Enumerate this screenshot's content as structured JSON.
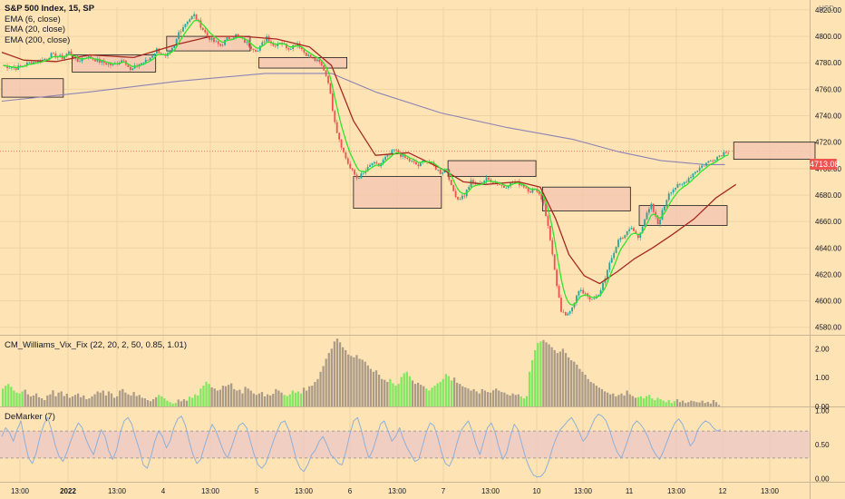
{
  "header": {
    "title": "S&P 500 Index, 15, SP",
    "currency": "USD",
    "indicators": [
      "EMA (6, close)",
      "EMA (20, close)",
      "EMA (200, close)"
    ]
  },
  "last_price": "4713.08",
  "colors": {
    "background": "#fee3b4",
    "up": "#26a69a",
    "down": "#ef5350",
    "ema6": "#2ee52e",
    "ema20": "#a52a1f",
    "ema200": "#8c84b4",
    "zone_fill": "#f4c8b2",
    "vix_high": "#7fe860",
    "vix_low": "#aa9a88",
    "demarker_line": "#8fb0d8",
    "demarker_band": "#eec8c6"
  },
  "vix_panel": {
    "title": "CM_Williams_Vix_Fix (22, 20, 2, 50, 0.85, 1.01)"
  },
  "demarker_panel": {
    "title": "DeMarker (7)"
  },
  "chart_data": [
    {
      "type": "candlestick",
      "title": "S&P 500 Index, 15, SP",
      "x_ticks": [
        "13:00",
        "2022",
        "13:00",
        "4",
        "13:00",
        "5",
        "13:00",
        "6",
        "13:00",
        "7",
        "13:00",
        "10",
        "13:00",
        "11",
        "13:00",
        "12",
        "13:00"
      ],
      "y_ticks": [
        "4820.00",
        "4800.00",
        "4780.00",
        "4760.00",
        "4740.00",
        "4720.00",
        "4700.00",
        "4680.00",
        "4660.00",
        "4640.00",
        "4620.00",
        "4600.00",
        "4580.00"
      ],
      "ylim": [
        4575,
        4822
      ],
      "last_value": 4713.08,
      "close_path": [
        [
          0,
          4778
        ],
        [
          6,
          4776
        ],
        [
          12,
          4780
        ],
        [
          18,
          4782
        ],
        [
          22,
          4786
        ],
        [
          27,
          4784
        ],
        [
          30,
          4788
        ],
        [
          34,
          4781
        ],
        [
          38,
          4785
        ],
        [
          44,
          4781
        ],
        [
          50,
          4778
        ],
        [
          55,
          4783
        ],
        [
          58,
          4774
        ],
        [
          62,
          4779
        ],
        [
          66,
          4782
        ],
        [
          70,
          4790
        ],
        [
          74,
          4784
        ],
        [
          78,
          4792
        ],
        [
          80,
          4803
        ],
        [
          84,
          4812
        ],
        [
          87,
          4816
        ],
        [
          90,
          4808
        ],
        [
          93,
          4800
        ],
        [
          96,
          4796
        ],
        [
          99,
          4793
        ],
        [
          102,
          4798
        ],
        [
          106,
          4801
        ],
        [
          110,
          4796
        ],
        [
          113,
          4792
        ],
        [
          116,
          4789
        ],
        [
          120,
          4800
        ],
        [
          123,
          4793
        ],
        [
          126,
          4796
        ],
        [
          130,
          4791
        ],
        [
          134,
          4795
        ],
        [
          137,
          4788
        ],
        [
          140,
          4784
        ],
        [
          142,
          4782
        ],
        [
          144,
          4780
        ],
        [
          146,
          4775
        ],
        [
          148,
          4766
        ],
        [
          150,
          4745
        ],
        [
          152,
          4728
        ],
        [
          155,
          4712
        ],
        [
          158,
          4700
        ],
        [
          161,
          4693
        ],
        [
          164,
          4696
        ],
        [
          168,
          4704
        ],
        [
          171,
          4702
        ],
        [
          174,
          4708
        ],
        [
          178,
          4714
        ],
        [
          182,
          4709
        ],
        [
          186,
          4705
        ],
        [
          189,
          4702
        ],
        [
          192,
          4707
        ],
        [
          196,
          4702
        ],
        [
          199,
          4697
        ],
        [
          202,
          4700
        ],
        [
          204,
          4686
        ],
        [
          207,
          4677
        ],
        [
          210,
          4680
        ],
        [
          213,
          4690
        ],
        [
          216,
          4688
        ],
        [
          220,
          4692
        ],
        [
          224,
          4690
        ],
        [
          228,
          4686
        ],
        [
          232,
          4690
        ],
        [
          236,
          4688
        ],
        [
          240,
          4683
        ],
        [
          243,
          4684
        ],
        [
          246,
          4674
        ],
        [
          248,
          4656
        ],
        [
          250,
          4636
        ],
        [
          252,
          4610
        ],
        [
          254,
          4592
        ],
        [
          256,
          4588
        ],
        [
          259,
          4596
        ],
        [
          262,
          4607
        ],
        [
          265,
          4606
        ],
        [
          268,
          4600
        ],
        [
          271,
          4604
        ],
        [
          274,
          4618
        ],
        [
          277,
          4632
        ],
        [
          280,
          4646
        ],
        [
          283,
          4650
        ],
        [
          286,
          4655
        ],
        [
          289,
          4648
        ],
        [
          292,
          4662
        ],
        [
          295,
          4672
        ],
        [
          298,
          4658
        ],
        [
          301,
          4672
        ],
        [
          303,
          4682
        ],
        [
          306,
          4686
        ],
        [
          309,
          4688
        ],
        [
          312,
          4693
        ],
        [
          315,
          4698
        ],
        [
          318,
          4702
        ],
        [
          320,
          4704
        ],
        [
          323,
          4707
        ],
        [
          326,
          4710
        ],
        [
          329,
          4713.08
        ]
      ],
      "ema200": [
        [
          0,
          4751
        ],
        [
          40,
          4758
        ],
        [
          80,
          4766
        ],
        [
          120,
          4772
        ],
        [
          150,
          4772
        ],
        [
          170,
          4758
        ],
        [
          200,
          4742
        ],
        [
          230,
          4731
        ],
        [
          260,
          4722
        ],
        [
          280,
          4713
        ],
        [
          300,
          4706
        ],
        [
          320,
          4703
        ],
        [
          329,
          4703
        ]
      ],
      "ema20": [
        [
          0,
          4788
        ],
        [
          10,
          4782
        ],
        [
          25,
          4781
        ],
        [
          40,
          4786
        ],
        [
          60,
          4784
        ],
        [
          80,
          4794
        ],
        [
          95,
          4800
        ],
        [
          110,
          4800
        ],
        [
          125,
          4798
        ],
        [
          140,
          4792
        ],
        [
          150,
          4778
        ],
        [
          160,
          4736
        ],
        [
          170,
          4710
        ],
        [
          185,
          4712
        ],
        [
          200,
          4700
        ],
        [
          210,
          4690
        ],
        [
          220,
          4688
        ],
        [
          235,
          4690
        ],
        [
          245,
          4686
        ],
        [
          252,
          4662
        ],
        [
          258,
          4635
        ],
        [
          265,
          4619
        ],
        [
          272,
          4613
        ],
        [
          280,
          4622
        ],
        [
          288,
          4632
        ],
        [
          296,
          4640
        ],
        [
          305,
          4650
        ],
        [
          315,
          4662
        ],
        [
          325,
          4678
        ],
        [
          334,
          4688
        ]
      ],
      "zones": [
        {
          "from": 0,
          "to": 28,
          "top": 4768,
          "bottom": 4754
        },
        {
          "from": 32,
          "to": 70,
          "top": 4786,
          "bottom": 4773
        },
        {
          "from": 75,
          "to": 113,
          "top": 4800,
          "bottom": 4789
        },
        {
          "from": 117,
          "to": 157,
          "top": 4784,
          "bottom": 4776
        },
        {
          "from": 160,
          "to": 200,
          "top": 4694,
          "bottom": 4670
        },
        {
          "from": 203,
          "to": 243,
          "top": 4706,
          "bottom": 4694
        },
        {
          "from": 246,
          "to": 286,
          "top": 4686,
          "bottom": 4668
        },
        {
          "from": 290,
          "to": 330,
          "top": 4672,
          "bottom": 4657
        },
        {
          "from": 333,
          "to": 370,
          "top": 4720,
          "bottom": 4707
        }
      ]
    },
    {
      "type": "bar",
      "title": "CM_Williams_Vix_Fix (22, 20, 2, 50, 0.85, 1.01)",
      "y_ticks": [
        "2.00",
        "1.00",
        "0.00"
      ],
      "ylim": [
        0,
        2.45
      ],
      "series": [
        {
          "name": "CM_Williams_Vix_Fix",
          "values": [
            0.62,
            0.72,
            0.78,
            0.68,
            0.55,
            0.48,
            0.45,
            0.52,
            0.58,
            0.42,
            0.35,
            0.38,
            0.45,
            0.32,
            0.28,
            0.22,
            0.38,
            0.42,
            0.56,
            0.35,
            0.48,
            0.52,
            0.36,
            0.44,
            0.3,
            0.35,
            0.4,
            0.45,
            0.32,
            0.38,
            0.25,
            0.28,
            0.35,
            0.42,
            0.52,
            0.48,
            0.55,
            0.38,
            0.52,
            0.45,
            0.3,
            0.35,
            0.55,
            0.6,
            0.48,
            0.42,
            0.38,
            0.5,
            0.36,
            0.4,
            0.3,
            0.28,
            0.22,
            0.18,
            0.25,
            0.32,
            0.4,
            0.35,
            0.28,
            0.2,
            0.15,
            0.1,
            0.12,
            0.24,
            0.18,
            0.25,
            0.2,
            0.34,
            0.3,
            0.42,
            0.38,
            0.62,
            0.72,
            0.85,
            0.78,
            0.66,
            0.62,
            0.55,
            0.58,
            0.72,
            0.7,
            0.75,
            0.8,
            0.6,
            0.55,
            0.58,
            0.45,
            0.68,
            0.62,
            0.55,
            0.45,
            0.4,
            0.45,
            0.5,
            0.35,
            0.42,
            0.38,
            0.44,
            0.6,
            0.55,
            0.48,
            0.4,
            0.36,
            0.42,
            0.55,
            0.48,
            0.52,
            0.45,
            0.65,
            0.55,
            0.7,
            0.72,
            0.85,
            0.95,
            1.2,
            1.4,
            1.65,
            1.85,
            2.0,
            2.25,
            2.35,
            2.22,
            2.05,
            1.95,
            1.8,
            1.75,
            1.7,
            1.78,
            1.65,
            1.62,
            1.55,
            1.42,
            1.3,
            1.2,
            1.25,
            1.1,
            0.95,
            0.92,
            0.85,
            0.95,
            0.8,
            0.72,
            0.78,
            1.02,
            1.15,
            1.2,
            1.05,
            0.9,
            0.78,
            0.82,
            0.75,
            0.7,
            0.62,
            0.55,
            0.65,
            0.72,
            0.8,
            0.85,
            0.95,
            1.12,
            1.05,
            0.9,
            1.0,
            0.82,
            0.78,
            0.7,
            0.66,
            0.62,
            0.55,
            0.6,
            0.52,
            0.45,
            0.6,
            0.55,
            0.5,
            0.48,
            0.56,
            0.62,
            0.55,
            0.5,
            0.48,
            0.42,
            0.38,
            0.45,
            0.4,
            0.42,
            0.35,
            0.28,
            0.36,
            1.2,
            1.6,
            1.95,
            2.2,
            2.25,
            2.3,
            2.22,
            2.15,
            2.05,
            1.95,
            1.85,
            1.9,
            2.0,
            1.85,
            1.7,
            1.6,
            1.55,
            1.45,
            1.3,
            1.2,
            1.1,
            0.95,
            0.85,
            0.8,
            0.72,
            0.65,
            0.6,
            0.52,
            0.48,
            0.42,
            0.45,
            0.35,
            0.4,
            0.45,
            0.38,
            0.55,
            0.42,
            0.36,
            0.3,
            0.32,
            0.35,
            0.28,
            0.36,
            0.4,
            0.28,
            0.22,
            0.3,
            0.25,
            0.2,
            0.15,
            0.22,
            0.12,
            0.18,
            0.25,
            0.15,
            0.2,
            0.12,
            0.15,
            0.2,
            0.18,
            0.15,
            0.14,
            0.2,
            0.12,
            0.16,
            0.1,
            0.22,
            0.15,
            0.05
          ],
          "highlight_ranges": [
            [
              0,
              7
            ],
            [
              56,
              62
            ],
            [
              67,
              74
            ],
            [
              101,
              107
            ],
            [
              139,
              146
            ],
            [
              152,
              161
            ],
            [
              186,
              193
            ],
            [
              228,
              241
            ]
          ]
        }
      ]
    },
    {
      "type": "line",
      "title": "DeMarker (7)",
      "y_ticks": [
        "1.00",
        "0.50",
        "0.00"
      ],
      "ylim": [
        -0.05,
        1.05
      ],
      "band": [
        0.3,
        0.7
      ],
      "series": [
        {
          "name": "DeMarker (7)",
          "values": [
            0.62,
            0.75,
            0.68,
            0.55,
            0.72,
            0.85,
            0.55,
            0.3,
            0.22,
            0.38,
            0.62,
            0.8,
            0.9,
            0.72,
            0.48,
            0.32,
            0.25,
            0.38,
            0.55,
            0.7,
            0.82,
            0.75,
            0.58,
            0.45,
            0.35,
            0.55,
            0.72,
            0.62,
            0.4,
            0.28,
            0.42,
            0.68,
            0.85,
            0.9,
            0.8,
            0.6,
            0.42,
            0.2,
            0.15,
            0.32,
            0.55,
            0.7,
            0.62,
            0.45,
            0.55,
            0.75,
            0.88,
            0.92,
            0.78,
            0.55,
            0.35,
            0.22,
            0.28,
            0.48,
            0.65,
            0.8,
            0.7,
            0.55,
            0.4,
            0.3,
            0.45,
            0.62,
            0.78,
            0.82,
            0.75,
            0.55,
            0.35,
            0.2,
            0.15,
            0.22,
            0.38,
            0.55,
            0.7,
            0.82,
            0.85,
            0.72,
            0.5,
            0.28,
            0.15,
            0.1,
            0.2,
            0.35,
            0.42,
            0.55,
            0.62,
            0.5,
            0.35,
            0.3,
            0.22,
            0.2,
            0.4,
            0.65,
            0.85,
            0.9,
            0.72,
            0.48,
            0.3,
            0.42,
            0.6,
            0.8,
            0.85,
            0.7,
            0.55,
            0.62,
            0.75,
            0.58,
            0.45,
            0.35,
            0.25,
            0.28,
            0.48,
            0.68,
            0.82,
            0.78,
            0.6,
            0.38,
            0.22,
            0.18,
            0.3,
            0.52,
            0.7,
            0.78,
            0.85,
            0.7,
            0.5,
            0.35,
            0.55,
            0.75,
            0.82,
            0.68,
            0.45,
            0.28,
            0.38,
            0.62,
            0.8,
            0.72,
            0.5,
            0.3,
            0.15,
            0.05,
            0.02,
            0.03,
            0.1,
            0.25,
            0.45,
            0.6,
            0.72,
            0.78,
            0.85,
            0.9,
            0.8,
            0.68,
            0.55,
            0.62,
            0.75,
            0.88,
            0.95,
            0.92,
            0.85,
            0.7,
            0.52,
            0.38,
            0.3,
            0.45,
            0.62,
            0.78,
            0.85,
            0.8,
            0.72,
            0.6,
            0.45,
            0.35,
            0.28,
            0.4,
            0.55,
            0.7,
            0.82,
            0.88,
            0.8,
            0.65,
            0.48,
            0.55,
            0.72,
            0.8,
            0.85,
            0.82,
            0.75,
            0.7,
            0.72
          ]
        }
      ]
    }
  ]
}
